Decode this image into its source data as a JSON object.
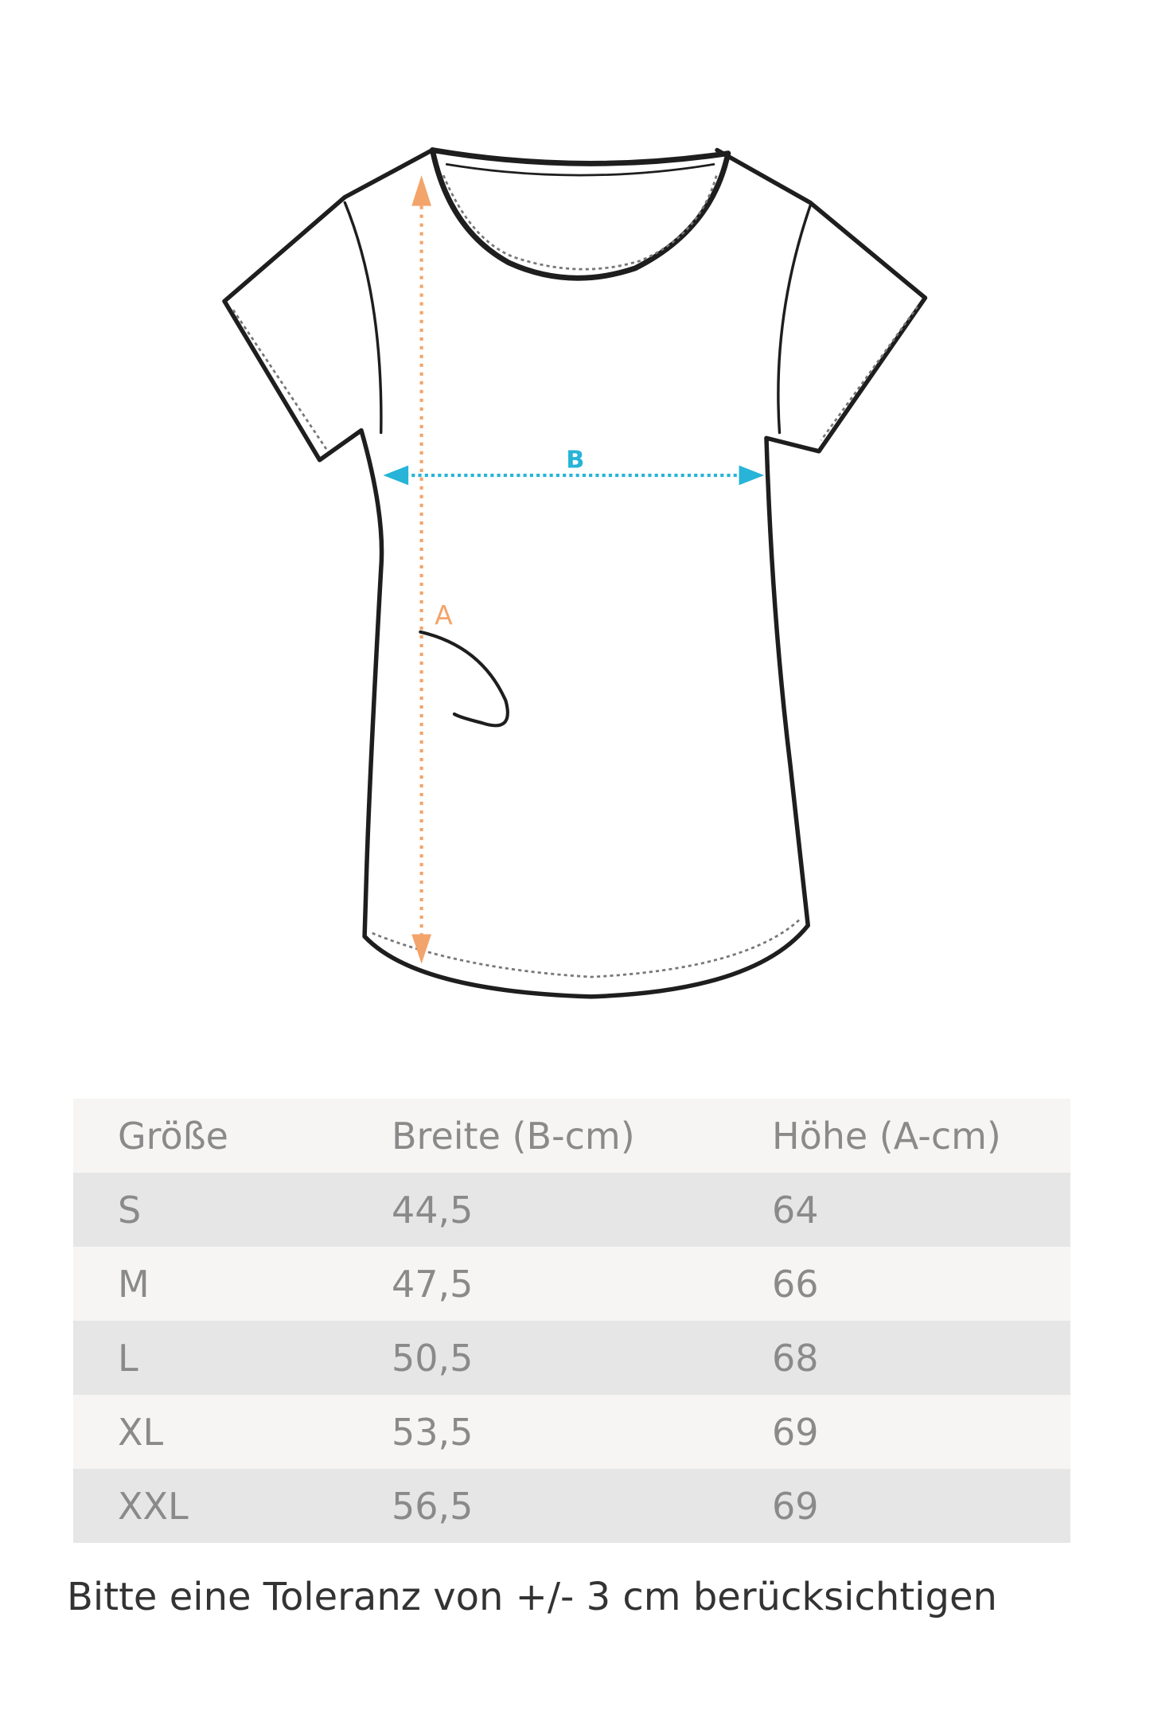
{
  "diagram": {
    "label_a": "A",
    "label_b": "B",
    "colors": {
      "a": "#f3a46a",
      "b": "#27b4d8",
      "outline": "#1e1e1e"
    }
  },
  "table": {
    "headers": [
      "Größe",
      "Breite (B-cm)",
      "Höhe (A-cm)"
    ],
    "rows": [
      [
        "S",
        "44,5",
        "64"
      ],
      [
        "M",
        "47,5",
        "66"
      ],
      [
        "L",
        "50,5",
        "68"
      ],
      [
        "XL",
        "53,5",
        "69"
      ],
      [
        "XXL",
        "56,5",
        "69"
      ]
    ]
  },
  "note": "Bitte eine Toleranz von +/- 3 cm berücksichtigen"
}
